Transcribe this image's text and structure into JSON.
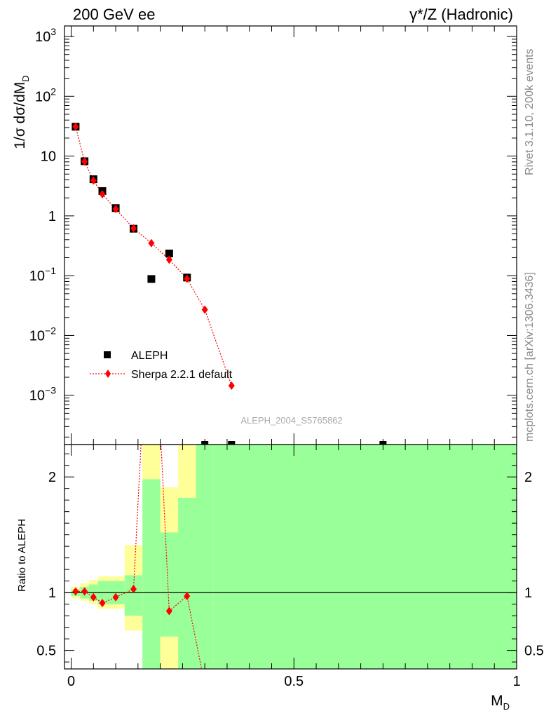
{
  "header": {
    "left": "200 GeV ee",
    "right": "γ*/Z (Hadronic)"
  },
  "side_labels": {
    "rivet": "Rivet 3.1.10,  200k events",
    "mcplots": "mcplots.cern.ch [arXiv:1306.3436]"
  },
  "analysis_id": "ALEPH_2004_S5765862",
  "colors": {
    "data": "#000000",
    "mc": "#ff0000",
    "band_inner": "#99ff99",
    "band_outer": "#ffff99"
  },
  "chart_data": [
    {
      "type": "scatter",
      "panel": "main",
      "ylabel": "1/σ dσ/dM",
      "ylabel_sub": "D",
      "yscale": "log",
      "xlim": [
        -0.015,
        1.0
      ],
      "ylim": [
        0.00015,
        1500
      ],
      "y_ticks": [
        {
          "value": 1000,
          "mant": "10",
          "exp": "3"
        },
        {
          "value": 100,
          "mant": "10",
          "exp": "2"
        },
        {
          "value": 10,
          "mant": "10",
          "exp": ""
        },
        {
          "value": 1,
          "mant": "1",
          "exp": ""
        },
        {
          "value": 0.1,
          "mant": "10",
          "exp": "−1"
        },
        {
          "value": 0.01,
          "mant": "10",
          "exp": "−2"
        },
        {
          "value": 0.001,
          "mant": "10",
          "exp": "−3"
        }
      ],
      "legend": {
        "position": "bottom-left",
        "entries": [
          "ALEPH",
          "Sherpa 2.2.1 default"
        ]
      },
      "series": [
        {
          "name": "ALEPH",
          "marker": "square",
          "x": [
            0.01,
            0.03,
            0.05,
            0.07,
            0.1,
            0.14,
            0.18,
            0.22,
            0.26
          ],
          "y": [
            31,
            8.2,
            4.1,
            2.6,
            1.35,
            0.61,
            0.088,
            0.235,
            0.093
          ]
        },
        {
          "name": "Sherpa 2.2.1 default",
          "marker": "diamond",
          "line": "dotted",
          "x": [
            0.01,
            0.03,
            0.05,
            0.07,
            0.1,
            0.14,
            0.18,
            0.22,
            0.26,
            0.3,
            0.36
          ],
          "y": [
            31,
            8.1,
            3.9,
            2.3,
            1.3,
            0.62,
            0.35,
            0.185,
            0.089,
            0.027,
            0.00145
          ]
        }
      ]
    },
    {
      "type": "line",
      "panel": "ratio",
      "ylabel": "Ratio to ALEPH",
      "xlabel": "M",
      "xlabel_sub": "D",
      "xlim": [
        -0.015,
        1.0
      ],
      "ylim": [
        0.34,
        2.28
      ],
      "x_ticks": [
        {
          "value": 0,
          "label": "0"
        },
        {
          "value": 0.5,
          "label": "0.5"
        },
        {
          "value": 1,
          "label": "1"
        }
      ],
      "y_ticks": [
        {
          "value": 0.5,
          "label": "0.5"
        },
        {
          "value": 1,
          "label": "1"
        },
        {
          "value": 2,
          "label": "2"
        }
      ],
      "reference": 1,
      "bands": [
        {
          "x0": 0.0,
          "x1": 0.02,
          "inner": [
            0.97,
            1.03
          ],
          "outer": [
            0.95,
            1.05
          ]
        },
        {
          "x0": 0.02,
          "x1": 0.04,
          "inner": [
            0.95,
            1.05
          ],
          "outer": [
            0.93,
            1.08
          ]
        },
        {
          "x0": 0.04,
          "x1": 0.06,
          "inner": [
            0.93,
            1.07
          ],
          "outer": [
            0.9,
            1.11
          ]
        },
        {
          "x0": 0.06,
          "x1": 0.08,
          "inner": [
            0.9,
            1.1
          ],
          "outer": [
            0.86,
            1.14
          ]
        },
        {
          "x0": 0.08,
          "x1": 0.12,
          "inner": [
            0.9,
            1.1
          ],
          "outer": [
            0.86,
            1.14
          ]
        },
        {
          "x0": 0.12,
          "x1": 0.16,
          "inner": [
            0.8,
            1.15
          ],
          "outer": [
            0.67,
            1.41
          ]
        },
        {
          "x0": 0.16,
          "x1": 0.2,
          "inner": [
            0.3,
            1.98
          ],
          "outer": [
            0.3,
            2.5
          ]
        },
        {
          "x0": 0.2,
          "x1": 0.24,
          "inner": [
            0.3,
            1.52
          ],
          "outer": [
            0.3,
            1.91
          ]
        },
        {
          "x0": 0.24,
          "x1": 0.28,
          "inner": [
            0.3,
            1.82
          ],
          "outer": [
            0.3,
            2.6
          ]
        },
        {
          "x0": 0.28,
          "x1": 0.32,
          "inner": [
            0.3,
            2.5
          ],
          "outer": [
            0.3,
            2.5
          ]
        },
        {
          "x0": 0.32,
          "x1": 1.0,
          "inner": [
            0.3,
            2.5
          ],
          "outer": [
            0.3,
            2.5
          ]
        }
      ],
      "gaps": [
        {
          "x0": 0.2,
          "x1": 0.24,
          "y0": 0.34,
          "y1": 0.62
        }
      ],
      "series": [
        {
          "name": "Sherpa 2.2.1 default",
          "x": [
            0.01,
            0.03,
            0.05,
            0.07,
            0.1,
            0.14,
            0.18,
            0.22,
            0.26,
            0.3
          ],
          "y": [
            1.01,
            1.01,
            0.96,
            0.91,
            0.96,
            1.03,
            4.0,
            0.84,
            0.97,
            0.2
          ]
        }
      ]
    }
  ]
}
